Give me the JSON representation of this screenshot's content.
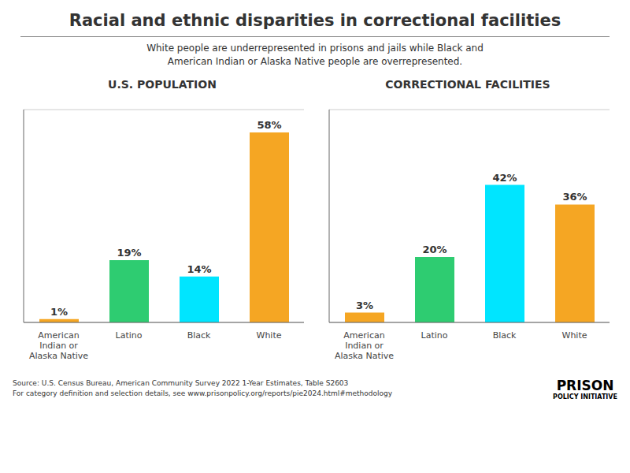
{
  "title": "Racial and ethnic disparities in correctional facilities",
  "subtitle": "White people are underrepresented in prisons and jails while Black and\nAmerican Indian or Alaska Native people are overrepresented.",
  "annotations": [
    "Source: U.S. Census Bureau, American Community Survey 2022 1-Year Estimates, Table S2603\nFor category definition and selection details, see www.prisonpolicy.org/reports/pie2024.html#methodology",
    "PRISON",
    "POLICY INITIATIVE"
  ],
  "chart_data": [
    {
      "type": "bar",
      "title": "U.S. POPULATION",
      "categories": [
        "American\nIndian or\nAlaska Native",
        "Latino",
        "Black",
        "White"
      ],
      "values": [
        1,
        19,
        14,
        58
      ],
      "value_labels": [
        "1%",
        "19%",
        "14%",
        "58%"
      ],
      "data_labels": true,
      "colors": [
        "#f5a623",
        "#2ecc71",
        "#00e5ff",
        "#f5a623"
      ],
      "ylim": [
        0,
        65
      ],
      "yticks": [
        0,
        20,
        40,
        60
      ],
      "grid": true,
      "tick_labels": "x"
    },
    {
      "type": "bar",
      "title": "CORRECTIONAL FACILITIES",
      "categories": [
        "American\nIndian or\nAlaska Native",
        "Latino",
        "Black",
        "White"
      ],
      "values": [
        3,
        20,
        42,
        36
      ],
      "value_labels": [
        "3%",
        "20%",
        "42%",
        "36%"
      ],
      "data_labels": true,
      "colors": [
        "#f5a623",
        "#2ecc71",
        "#00e5ff",
        "#f5a623"
      ],
      "ylim": [
        0,
        65
      ],
      "yticks": [
        0,
        20,
        40,
        60
      ],
      "grid": true,
      "tick_labels": "x"
    }
  ]
}
